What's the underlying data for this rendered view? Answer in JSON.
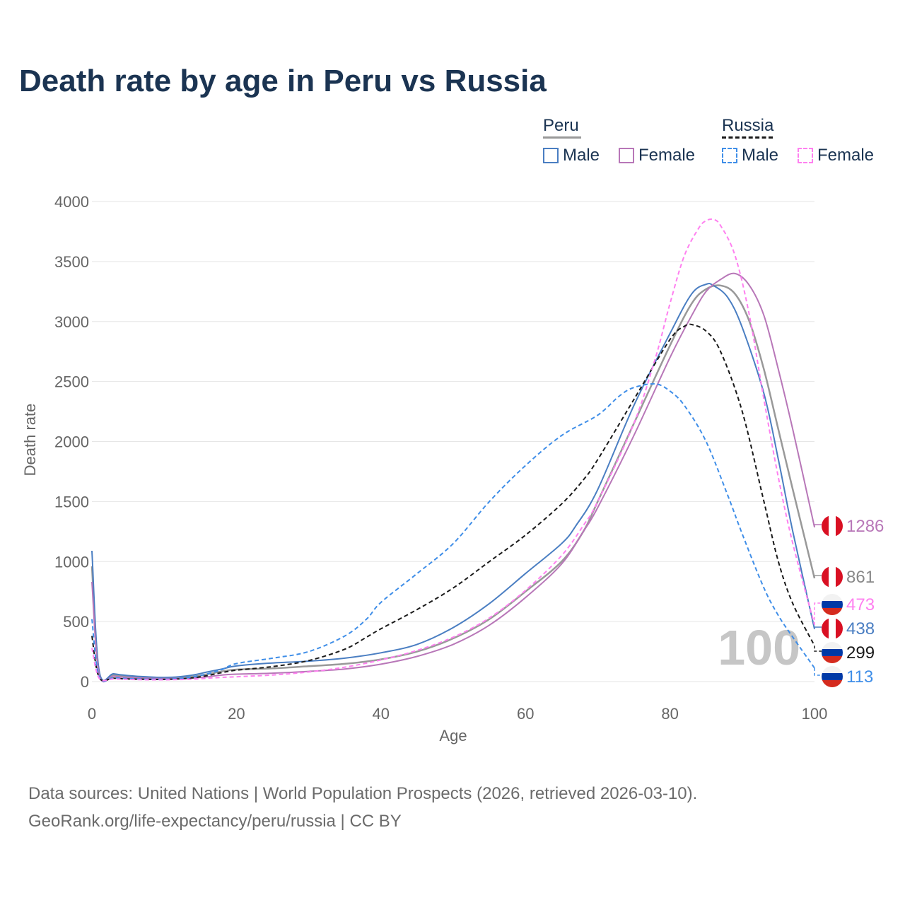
{
  "title": "Death rate by age in Peru vs Russia",
  "legend": {
    "groups": [
      {
        "name": "Peru",
        "line_color": "#999999",
        "line_style": "solid",
        "items": [
          {
            "label": "Male",
            "color": "#4a7ec2",
            "style": "solid"
          },
          {
            "label": "Female",
            "color": "#b877b8",
            "style": "solid"
          }
        ]
      },
      {
        "name": "Russia",
        "line_color": "#1a1a1a",
        "line_style": "dashed",
        "items": [
          {
            "label": "Male",
            "color": "#3f8ee8",
            "style": "dashed"
          },
          {
            "label": "Female",
            "color": "#ff80f0",
            "style": "dashed"
          }
        ]
      }
    ]
  },
  "chart_data": {
    "type": "line",
    "title": "Death rate by age in Peru vs Russia",
    "xlabel": "Age",
    "ylabel": "Death rate",
    "xlim": [
      0,
      100
    ],
    "ylim": [
      0,
      4000
    ],
    "x_ticks": [
      0,
      20,
      40,
      60,
      80,
      100
    ],
    "y_ticks": [
      0,
      500,
      1000,
      1500,
      2000,
      2500,
      3000,
      3500,
      4000
    ],
    "grid": true,
    "year_watermark": "100",
    "series": [
      {
        "name": "Peru Total",
        "color": "#999999",
        "style": "solid",
        "flag": "peru",
        "end_label": "861",
        "points": [
          [
            0,
            960
          ],
          [
            1,
            75
          ],
          [
            3,
            55
          ],
          [
            5,
            42
          ],
          [
            8,
            32
          ],
          [
            10,
            30
          ],
          [
            12,
            32
          ],
          [
            14,
            42
          ],
          [
            16,
            62
          ],
          [
            18,
            85
          ],
          [
            20,
            100
          ],
          [
            25,
            110
          ],
          [
            30,
            128
          ],
          [
            35,
            148
          ],
          [
            40,
            185
          ],
          [
            45,
            250
          ],
          [
            50,
            360
          ],
          [
            55,
            520
          ],
          [
            60,
            750
          ],
          [
            65,
            1000
          ],
          [
            68,
            1250
          ],
          [
            70,
            1500
          ],
          [
            75,
            2150
          ],
          [
            80,
            2800
          ],
          [
            83,
            3150
          ],
          [
            85,
            3270
          ],
          [
            87,
            3300
          ],
          [
            89,
            3230
          ],
          [
            91,
            3000
          ],
          [
            93,
            2600
          ],
          [
            95,
            2100
          ],
          [
            97,
            1600
          ],
          [
            100,
            861
          ]
        ]
      },
      {
        "name": "Peru Male",
        "color": "#4a7ec2",
        "style": "solid",
        "flag": "peru",
        "end_label": "438",
        "points": [
          [
            0,
            1090
          ],
          [
            1,
            90
          ],
          [
            3,
            65
          ],
          [
            5,
            50
          ],
          [
            8,
            38
          ],
          [
            10,
            35
          ],
          [
            12,
            40
          ],
          [
            14,
            55
          ],
          [
            16,
            80
          ],
          [
            18,
            105
          ],
          [
            20,
            130
          ],
          [
            25,
            155
          ],
          [
            30,
            170
          ],
          [
            35,
            195
          ],
          [
            40,
            240
          ],
          [
            45,
            310
          ],
          [
            50,
            450
          ],
          [
            55,
            650
          ],
          [
            60,
            900
          ],
          [
            65,
            1150
          ],
          [
            67,
            1300
          ],
          [
            70,
            1600
          ],
          [
            75,
            2300
          ],
          [
            80,
            2900
          ],
          [
            83,
            3230
          ],
          [
            85,
            3310
          ],
          [
            86,
            3300
          ],
          [
            88,
            3200
          ],
          [
            90,
            2950
          ],
          [
            93,
            2400
          ],
          [
            95,
            1850
          ],
          [
            97,
            1250
          ],
          [
            100,
            438
          ]
        ]
      },
      {
        "name": "Peru Female",
        "color": "#b877b8",
        "style": "solid",
        "flag": "peru",
        "end_label": "1286",
        "points": [
          [
            0,
            830
          ],
          [
            1,
            60
          ],
          [
            3,
            45
          ],
          [
            5,
            34
          ],
          [
            8,
            27
          ],
          [
            10,
            25
          ],
          [
            12,
            26
          ],
          [
            14,
            30
          ],
          [
            16,
            40
          ],
          [
            18,
            55
          ],
          [
            20,
            62
          ],
          [
            25,
            70
          ],
          [
            30,
            85
          ],
          [
            35,
            105
          ],
          [
            40,
            145
          ],
          [
            45,
            210
          ],
          [
            50,
            310
          ],
          [
            55,
            470
          ],
          [
            60,
            700
          ],
          [
            65,
            980
          ],
          [
            68,
            1250
          ],
          [
            70,
            1450
          ],
          [
            75,
            2050
          ],
          [
            80,
            2700
          ],
          [
            83,
            3050
          ],
          [
            85,
            3250
          ],
          [
            87,
            3350
          ],
          [
            89,
            3400
          ],
          [
            91,
            3300
          ],
          [
            93,
            3050
          ],
          [
            95,
            2600
          ],
          [
            97,
            2100
          ],
          [
            100,
            1286
          ]
        ]
      },
      {
        "name": "Russia Total",
        "color": "#1a1a1a",
        "style": "dashed",
        "flag": "russia",
        "end_label": "299",
        "points": [
          [
            0,
            380
          ],
          [
            1,
            35
          ],
          [
            3,
            28
          ],
          [
            5,
            22
          ],
          [
            8,
            18
          ],
          [
            10,
            18
          ],
          [
            12,
            22
          ],
          [
            14,
            32
          ],
          [
            16,
            50
          ],
          [
            18,
            75
          ],
          [
            20,
            95
          ],
          [
            25,
            125
          ],
          [
            30,
            175
          ],
          [
            35,
            270
          ],
          [
            38,
            370
          ],
          [
            40,
            440
          ],
          [
            45,
            600
          ],
          [
            50,
            780
          ],
          [
            55,
            1000
          ],
          [
            60,
            1220
          ],
          [
            65,
            1480
          ],
          [
            68,
            1680
          ],
          [
            70,
            1850
          ],
          [
            75,
            2350
          ],
          [
            80,
            2850
          ],
          [
            82,
            2960
          ],
          [
            83,
            2975
          ],
          [
            85,
            2920
          ],
          [
            87,
            2750
          ],
          [
            90,
            2250
          ],
          [
            93,
            1500
          ],
          [
            95,
            1000
          ],
          [
            97,
            650
          ],
          [
            100,
            299
          ]
        ]
      },
      {
        "name": "Russia Male",
        "color": "#3f8ee8",
        "style": "dashed",
        "flag": "russia",
        "end_label": "113",
        "points": [
          [
            0,
            520
          ],
          [
            1,
            40
          ],
          [
            3,
            32
          ],
          [
            5,
            25
          ],
          [
            8,
            20
          ],
          [
            10,
            20
          ],
          [
            12,
            25
          ],
          [
            14,
            40
          ],
          [
            16,
            65
          ],
          [
            18,
            100
          ],
          [
            20,
            150
          ],
          [
            25,
            195
          ],
          [
            30,
            250
          ],
          [
            35,
            380
          ],
          [
            38,
            520
          ],
          [
            40,
            660
          ],
          [
            45,
            900
          ],
          [
            50,
            1150
          ],
          [
            55,
            1500
          ],
          [
            60,
            1800
          ],
          [
            65,
            2050
          ],
          [
            70,
            2220
          ],
          [
            73,
            2380
          ],
          [
            75,
            2450
          ],
          [
            78,
            2480
          ],
          [
            80,
            2420
          ],
          [
            82,
            2300
          ],
          [
            85,
            2000
          ],
          [
            88,
            1550
          ],
          [
            90,
            1230
          ],
          [
            93,
            780
          ],
          [
            95,
            550
          ],
          [
            97,
            370
          ],
          [
            100,
            113
          ]
        ]
      },
      {
        "name": "Russia Female",
        "color": "#ff80f0",
        "style": "dashed",
        "flag": "russia",
        "end_label": "473",
        "points": [
          [
            0,
            280
          ],
          [
            1,
            28
          ],
          [
            3,
            22
          ],
          [
            5,
            18
          ],
          [
            8,
            15
          ],
          [
            10,
            15
          ],
          [
            12,
            17
          ],
          [
            14,
            20
          ],
          [
            16,
            28
          ],
          [
            18,
            35
          ],
          [
            20,
            40
          ],
          [
            25,
            55
          ],
          [
            30,
            80
          ],
          [
            35,
            120
          ],
          [
            40,
            180
          ],
          [
            45,
            260
          ],
          [
            50,
            370
          ],
          [
            55,
            530
          ],
          [
            60,
            760
          ],
          [
            65,
            1050
          ],
          [
            68,
            1300
          ],
          [
            70,
            1500
          ],
          [
            75,
            2150
          ],
          [
            78,
            2700
          ],
          [
            80,
            3150
          ],
          [
            82,
            3550
          ],
          [
            84,
            3780
          ],
          [
            85,
            3840
          ],
          [
            86,
            3850
          ],
          [
            87,
            3800
          ],
          [
            89,
            3550
          ],
          [
            91,
            3050
          ],
          [
            93,
            2350
          ],
          [
            95,
            1700
          ],
          [
            97,
            1150
          ],
          [
            100,
            473
          ]
        ]
      }
    ]
  },
  "footer": {
    "line1": "Data sources: United Nations | World Population Prospects (2026, retrieved 2026-03-10).",
    "line2": "GeoRank.org/life-expectancy/peru/russia | CC BY"
  }
}
